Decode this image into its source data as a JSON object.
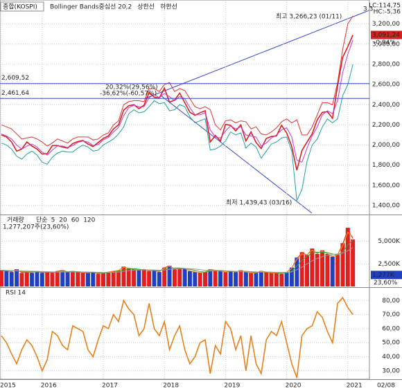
{
  "chart_data": [
    {
      "type": "line",
      "title": "종합(KOSPI)",
      "series": [
        {
          "color": "#d42020",
          "values": [
            2100,
            2080,
            2030,
            1940,
            1960,
            2030,
            1990,
            1960,
            1910,
            1915,
            1995,
            1995,
            1980,
            1970,
            2015,
            2035,
            2045,
            2010,
            1985,
            2025,
            2065,
            2090,
            2160,
            2200,
            2345,
            2390,
            2400,
            2360,
            2395,
            2520,
            2475,
            2465,
            2565,
            2425,
            2445,
            2515,
            2420,
            2325,
            2295,
            2320,
            2340,
            2030,
            2095,
            2040,
            2205,
            2195,
            2140,
            2200,
            2040,
            2130,
            2025,
            1965,
            2065,
            2085,
            2090,
            2195,
            2120,
            1985,
            1750,
            1945,
            2030,
            2110,
            2250,
            2325,
            2330,
            2265,
            2590,
            2870,
            2975,
            3091
          ]
        },
        {
          "name": "Bollinger Bands중심선 20,2",
          "color": "#cc33cc",
          "values": [
            2110,
            2090,
            2060,
            2000,
            1960,
            1990,
            2010,
            1980,
            1930,
            1900,
            1950,
            1990,
            1990,
            1975,
            1995,
            2025,
            2040,
            2030,
            1995,
            2005,
            2050,
            2075,
            2130,
            2175,
            2290,
            2370,
            2395,
            2380,
            2380,
            2470,
            2500,
            2470,
            2510,
            2480,
            2440,
            2480,
            2460,
            2370,
            2300,
            2300,
            2320,
            2150,
            2080,
            2070,
            2140,
            2190,
            2160,
            2180,
            2100,
            2090,
            2080,
            1990,
            2020,
            2070,
            2100,
            2150,
            2170,
            2080,
            1850,
            1830,
            1970,
            2090,
            2180,
            2300,
            2340,
            2310,
            2440,
            2720,
            2900,
            3040
          ]
        },
        {
          "name": "상한선",
          "color": "#e03030",
          "values": [
            2200,
            2180,
            2160,
            2110,
            2060,
            2070,
            2080,
            2060,
            2030,
            1990,
            2020,
            2060,
            2040,
            2020,
            2060,
            2080,
            2080,
            2080,
            2050,
            2060,
            2100,
            2120,
            2200,
            2240,
            2400,
            2430,
            2440,
            2440,
            2430,
            2560,
            2560,
            2530,
            2600,
            2620,
            2530,
            2560,
            2540,
            2460,
            2380,
            2360,
            2380,
            2350,
            2200,
            2150,
            2240,
            2250,
            2220,
            2240,
            2230,
            2160,
            2180,
            2110,
            2100,
            2130,
            2170,
            2230,
            2260,
            2220,
            2250,
            2100,
            2100,
            2180,
            2300,
            2420,
            2420,
            2400,
            2620,
            2950,
            3200,
            3280
          ]
        },
        {
          "name": "하한선",
          "color": "#22a0a0",
          "values": [
            2020,
            2000,
            1960,
            1890,
            1860,
            1910,
            1940,
            1900,
            1830,
            1810,
            1880,
            1920,
            1940,
            1930,
            1930,
            1970,
            2000,
            1980,
            1940,
            1950,
            2000,
            2030,
            2060,
            2110,
            2180,
            2310,
            2350,
            2320,
            2330,
            2380,
            2440,
            2410,
            2420,
            2340,
            2350,
            2400,
            2380,
            2280,
            2220,
            2240,
            2260,
            1950,
            1960,
            1990,
            2040,
            2130,
            2100,
            2120,
            1970,
            2020,
            1980,
            1870,
            1940,
            2010,
            2030,
            2070,
            2080,
            1940,
            1450,
            1560,
            1840,
            2000,
            2060,
            2180,
            2260,
            2220,
            2260,
            2490,
            2600,
            2800
          ]
        }
      ],
      "ylim": [
        1318,
        3424
      ],
      "yticks": [
        {
          "value": 1400,
          "label": "1,400,00"
        },
        {
          "value": 1600,
          "label": "1,600,00"
        },
        {
          "value": 1800,
          "label": "1,800,00"
        },
        {
          "value": 2000,
          "label": "2,000,00"
        },
        {
          "value": 2200,
          "label": "2,200,00"
        },
        {
          "value": 2400,
          "label": "2,400,00"
        },
        {
          "value": 2600,
          "label": "2,600,00"
        },
        {
          "value": 2800,
          "label": "2,800,00"
        },
        {
          "value": 3000,
          "label": "3,000,00"
        },
        {
          "value": 3200,
          "label": "3,200,00"
        }
      ],
      "hlines": [
        {
          "value": 2609.52,
          "label": "2,609,52"
        },
        {
          "value": 2461.64,
          "label": "2,461,64"
        }
      ],
      "annotations": [
        "최고 3,266,23 (01/11)",
        "최저 1,439,43 (03/16)",
        "20,32%(29,56%)",
        "-36,62%(-60,57%)",
        "3,3",
        "LC:114,75",
        "HC:-5,36"
      ],
      "last_value": {
        "value": 3091.24,
        "label": "3,091,24",
        "change": "-0,94%"
      },
      "grid": true
    },
    {
      "type": "bar",
      "title": "거래량",
      "series": [
        {
          "values": [
            1800,
            1700,
            1600,
            1900,
            1500,
            1600,
            1500,
            1700,
            1500,
            1600,
            1500,
            1700,
            1800,
            1600,
            1700,
            1600,
            1500,
            1500,
            1600,
            1400,
            1500,
            1600,
            1700,
            1800,
            2200,
            2000,
            1900,
            1800,
            1900,
            1700,
            1800,
            1600,
            2100,
            2300,
            1900,
            2000,
            2000,
            1700,
            1600,
            1500,
            1600,
            1900,
            1800,
            1700,
            1600,
            1700,
            1600,
            1800,
            1600,
            1500,
            1500,
            1700,
            1600,
            1500,
            1500,
            1400,
            1600,
            2100,
            3200,
            3800,
            3500,
            4200,
            3600,
            4000,
            3600,
            3300,
            3500,
            4800,
            6500,
            5200
          ]
        }
      ],
      "ma_label": "단순",
      "ma_series": [
        {
          "name": "5",
          "color": "#e02020",
          "values": [
            1750,
            1720,
            1650,
            1850,
            1550,
            1600,
            1520,
            1680,
            1520,
            1600,
            1520,
            1680,
            1780,
            1620,
            1690,
            1610,
            1520,
            1510,
            1590,
            1420,
            1490,
            1600,
            1690,
            1790,
            2150,
            2030,
            1910,
            1810,
            1890,
            1720,
            1790,
            1620,
            2080,
            2280,
            1920,
            2000,
            2000,
            1720,
            1610,
            1510,
            1600,
            1880,
            1800,
            1710,
            1610,
            1700,
            1610,
            1790,
            1610,
            1510,
            1510,
            1690,
            1600,
            1510,
            1500,
            1420,
            1580,
            2050,
            3100,
            3700,
            3500,
            4100,
            3650,
            3950,
            3620,
            3320,
            3500,
            4700,
            6300,
            5300
          ]
        },
        {
          "name": "20",
          "color": "#e8a317",
          "values": [
            1800,
            1750,
            1700,
            1750,
            1650,
            1620,
            1580,
            1620,
            1570,
            1580,
            1560,
            1620,
            1700,
            1650,
            1680,
            1620,
            1560,
            1520,
            1580,
            1450,
            1480,
            1570,
            1680,
            1780,
            2100,
            2050,
            1920,
            1820,
            1880,
            1750,
            1780,
            1650,
            2000,
            2250,
            1950,
            1980,
            1990,
            1750,
            1630,
            1530,
            1590,
            1850,
            1800,
            1720,
            1620,
            1680,
            1620,
            1760,
            1620,
            1520,
            1510,
            1660,
            1610,
            1520,
            1500,
            1430,
            1560,
            2000,
            3000,
            3600,
            3500,
            4000,
            3700,
            3900,
            3650,
            3350,
            3480,
            4500,
            6000,
            5500
          ]
        },
        {
          "name": "60",
          "color": "#3c9a3c",
          "values": [
            1800,
            1780,
            1750,
            1720,
            1700,
            1680,
            1650,
            1620,
            1600,
            1590,
            1580,
            1590,
            1620,
            1640,
            1650,
            1640,
            1610,
            1570,
            1550,
            1520,
            1500,
            1520,
            1580,
            1680,
            1850,
            1950,
            1980,
            1900,
            1860,
            1820,
            1790,
            1740,
            1850,
            2000,
            2050,
            2050,
            2000,
            1900,
            1780,
            1650,
            1600,
            1680,
            1750,
            1780,
            1720,
            1680,
            1660,
            1700,
            1680,
            1620,
            1560,
            1580,
            1600,
            1580,
            1540,
            1480,
            1500,
            1700,
            2250,
            2900,
            3350,
            3700,
            3800,
            3800,
            3750,
            3600,
            3480,
            3800,
            4600,
            5100
          ]
        },
        {
          "name": "120",
          "color": "#999999",
          "values": [
            1750,
            1750,
            1740,
            1730,
            1720,
            1700,
            1690,
            1670,
            1650,
            1640,
            1620,
            1610,
            1610,
            1610,
            1620,
            1620,
            1610,
            1600,
            1590,
            1570,
            1550,
            1550,
            1560,
            1600,
            1670,
            1740,
            1800,
            1830,
            1840,
            1840,
            1830,
            1800,
            1830,
            1880,
            1930,
            1970,
            1990,
            1970,
            1920,
            1860,
            1800,
            1760,
            1740,
            1740,
            1720,
            1700,
            1680,
            1680,
            1670,
            1650,
            1620,
            1610,
            1600,
            1590,
            1570,
            1550,
            1550,
            1620,
            1850,
            2150,
            2500,
            2850,
            3100,
            3300,
            3450,
            3550,
            3600,
            3700,
            3950,
            4300
          ]
        }
      ],
      "info": "1,277,207주(23,60%)",
      "last_value": {
        "value": 1277,
        "label": "1,277K",
        "change": "23,60%"
      },
      "ylim": [
        0,
        7730
      ],
      "yticks": [
        {
          "value": 2500,
          "label": "2,500K"
        },
        {
          "value": 5000,
          "label": "5,000K"
        }
      ],
      "grid": true
    },
    {
      "type": "line",
      "title": "RSI 14",
      "categories": [
        "2015",
        null,
        null,
        null,
        null,
        null,
        null,
        null,
        "2016",
        null,
        null,
        null,
        null,
        null,
        null,
        null,
        null,
        null,
        null,
        null,
        "2017",
        null,
        null,
        null,
        null,
        null,
        null,
        null,
        null,
        null,
        null,
        null,
        "2018",
        null,
        null,
        null,
        null,
        null,
        null,
        null,
        null,
        null,
        null,
        null,
        "2019",
        null,
        null,
        null,
        null,
        null,
        null,
        null,
        null,
        null,
        null,
        null,
        "2020",
        null,
        null,
        null,
        null,
        null,
        null,
        null,
        null,
        null,
        null,
        null,
        "2021",
        null
      ],
      "last_date_label": "02/08",
      "series": [
        {
          "color": "#e8801a",
          "values": [
            55,
            50,
            42,
            35,
            45,
            52,
            48,
            40,
            30,
            38,
            58,
            55,
            48,
            45,
            62,
            60,
            58,
            45,
            40,
            52,
            62,
            60,
            70,
            65,
            80,
            74,
            70,
            55,
            60,
            78,
            60,
            55,
            65,
            45,
            55,
            62,
            45,
            35,
            40,
            50,
            52,
            28,
            48,
            42,
            65,
            60,
            45,
            55,
            30,
            55,
            35,
            28,
            52,
            58,
            55,
            65,
            50,
            35,
            25,
            55,
            60,
            62,
            72,
            68,
            58,
            50,
            78,
            82,
            75,
            70
          ]
        }
      ],
      "ylim": [
        24.5,
        88
      ],
      "yticks": [
        {
          "value": 30,
          "label": "30,00"
        },
        {
          "value": 40,
          "label": "40,00"
        },
        {
          "value": 50,
          "label": "50,00"
        },
        {
          "value": 60,
          "label": "60,00"
        },
        {
          "value": 70,
          "label": "70,00"
        },
        {
          "value": 80,
          "label": "80,00"
        }
      ],
      "grid": true
    }
  ]
}
